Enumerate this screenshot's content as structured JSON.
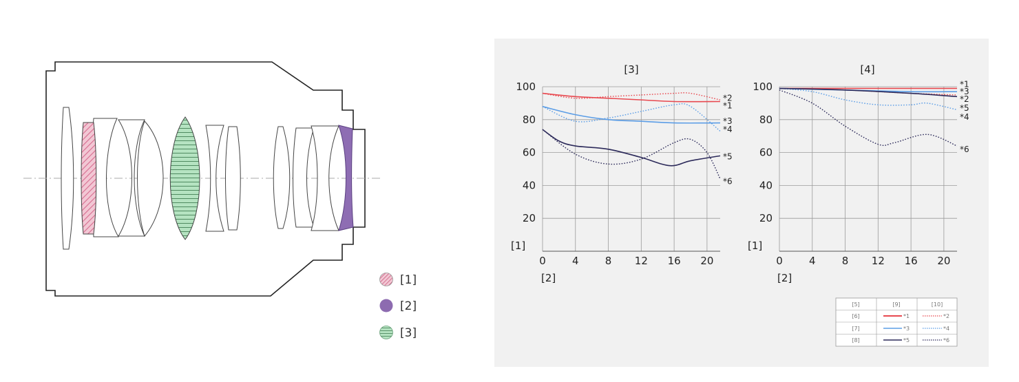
{
  "lens_legend": [
    {
      "label": "[1]",
      "fill": "#e9a6bc",
      "icon": "hatched-circle-icon"
    },
    {
      "label": "[2]",
      "fill": "#8d6bb0",
      "icon": "solid-circle-icon"
    },
    {
      "label": "[3]",
      "fill": "#a9dcb7",
      "icon": "striped-circle-icon"
    }
  ],
  "colors": {
    "pink_element": "#eaa3bb",
    "purple_element": "#8e6db3",
    "green_element": "#b5e3c1",
    "red": "#e8484f",
    "blue": "#5b9de6",
    "navy": "#2c2a5a"
  },
  "chart_data": [
    {
      "type": "line",
      "title": "[3]",
      "xlabel": "[2]",
      "ylabel": "[1]",
      "xlim": [
        0,
        21.6
      ],
      "ylim": [
        0,
        100
      ],
      "xticks": [
        "0",
        "4",
        "8",
        "12",
        "16",
        "20"
      ],
      "yticks": [
        "20",
        "40",
        "60",
        "80",
        "100"
      ],
      "series": [
        {
          "name": "*1",
          "color": "#e8484f",
          "style": "solid",
          "x": [
            0,
            4,
            8,
            12,
            16,
            21.6
          ],
          "y": [
            96,
            94,
            93,
            92,
            91,
            91
          ]
        },
        {
          "name": "*2",
          "color": "#e8484f",
          "style": "dotted",
          "x": [
            0,
            4,
            8,
            12,
            16,
            18,
            21.6
          ],
          "y": [
            96,
            93,
            94,
            95,
            96,
            96,
            92
          ]
        },
        {
          "name": "*3",
          "color": "#5b9de6",
          "style": "solid",
          "x": [
            0,
            4,
            8,
            12,
            16,
            21.6
          ],
          "y": [
            88,
            83,
            80,
            79,
            78,
            78
          ]
        },
        {
          "name": "*4",
          "color": "#5b9de6",
          "style": "dotted",
          "x": [
            0,
            4,
            8,
            12,
            16,
            18,
            21.6
          ],
          "y": [
            88,
            79,
            81,
            85,
            89,
            88,
            73
          ]
        },
        {
          "name": "*5",
          "color": "#2c2a5a",
          "style": "solid",
          "x": [
            0,
            2,
            4,
            8,
            12,
            15.5,
            18,
            21.6
          ],
          "y": [
            74,
            67,
            64,
            62,
            57,
            52,
            55,
            58
          ]
        },
        {
          "name": "*6",
          "color": "#2c2a5a",
          "style": "dotted",
          "x": [
            0,
            4,
            8,
            12,
            16,
            18,
            20,
            21.6
          ],
          "y": [
            74,
            59,
            53,
            56,
            66,
            68,
            60,
            44
          ]
        }
      ]
    },
    {
      "type": "line",
      "title": "[4]",
      "xlabel": "[2]",
      "ylabel": "[1]",
      "xlim": [
        0,
        21.6
      ],
      "ylim": [
        0,
        100
      ],
      "xticks": [
        "0",
        "4",
        "8",
        "12",
        "16",
        "20"
      ],
      "yticks": [
        "20",
        "40",
        "60",
        "80",
        "100"
      ],
      "series": [
        {
          "name": "*1",
          "color": "#e8484f",
          "style": "solid",
          "x": [
            0,
            8,
            16,
            21.6
          ],
          "y": [
            99,
            99,
            99,
            99
          ]
        },
        {
          "name": "*2",
          "color": "#e8484f",
          "style": "dotted",
          "x": [
            0,
            8,
            16,
            21.6
          ],
          "y": [
            99,
            98,
            96,
            95
          ]
        },
        {
          "name": "*3",
          "color": "#5b9de6",
          "style": "solid",
          "x": [
            0,
            8,
            16,
            21.6
          ],
          "y": [
            99,
            98,
            97,
            97
          ]
        },
        {
          "name": "*4",
          "color": "#5b9de6",
          "style": "dotted",
          "x": [
            0,
            4,
            8,
            12,
            16,
            18,
            21.6
          ],
          "y": [
            99,
            97,
            92,
            89,
            89,
            90,
            86
          ]
        },
        {
          "name": "*5",
          "color": "#2c2a5a",
          "style": "solid",
          "x": [
            0,
            8,
            16,
            21.6
          ],
          "y": [
            99,
            98,
            96,
            94
          ]
        },
        {
          "name": "*6",
          "color": "#2c2a5a",
          "style": "dotted",
          "x": [
            0,
            4,
            8,
            12,
            14,
            18,
            21.6
          ],
          "y": [
            98,
            90,
            76,
            65,
            66,
            71,
            64
          ]
        }
      ]
    }
  ],
  "curve_labels_left": [
    {
      "text": "*2",
      "y": 93
    },
    {
      "text": "*1",
      "y": 88.5
    },
    {
      "text": "*3",
      "y": 79
    },
    {
      "text": "*4",
      "y": 74
    },
    {
      "text": "*5",
      "y": 57.5
    },
    {
      "text": "*6",
      "y": 42.5
    }
  ],
  "curve_labels_right": [
    {
      "text": "*1",
      "y": 101.5
    },
    {
      "text": "*3",
      "y": 97
    },
    {
      "text": "*2",
      "y": 92.5
    },
    {
      "text": "*5",
      "y": 87
    },
    {
      "text": "*4",
      "y": 81.5
    },
    {
      "text": "*6",
      "y": 62
    }
  ],
  "line_table": {
    "header": [
      "[5]",
      "[9]",
      "[10]"
    ],
    "rows": [
      {
        "label": "[6]",
        "solid": "*1",
        "dotted": "*2",
        "color": "#e8484f"
      },
      {
        "label": "[7]",
        "solid": "*3",
        "dotted": "*4",
        "color": "#5b9de6"
      },
      {
        "label": "[8]",
        "solid": "*5",
        "dotted": "*6",
        "color": "#2c2a5a"
      }
    ]
  }
}
